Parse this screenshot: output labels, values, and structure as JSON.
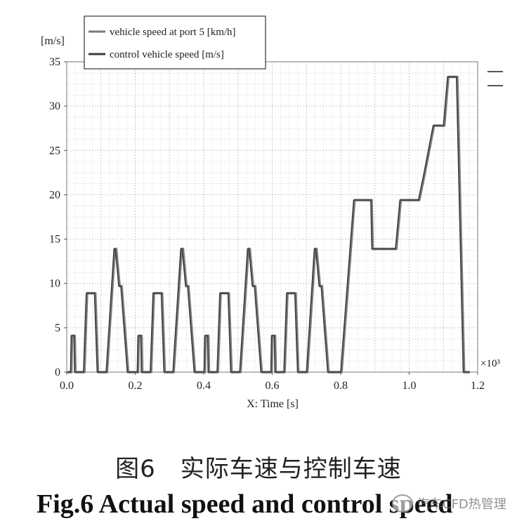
{
  "chart_data": {
    "type": "line",
    "xlabel": "X: Time  [s]",
    "ylabel": "[m/s]",
    "x_multiplier": "×10³",
    "xlim": [
      0,
      1.2
    ],
    "ylim": [
      0,
      35
    ],
    "xticks": [
      "0.0",
      "0.2",
      "0.4",
      "0.6",
      "0.8",
      "1.0",
      "1.2"
    ],
    "yticks": [
      "0",
      "5",
      "10",
      "15",
      "20",
      "25",
      "30",
      "35"
    ],
    "grid": true,
    "legend_position": "top-left",
    "series": [
      {
        "name": "vehicle speed at port 5  [km/h]",
        "color": "#7a7a7a",
        "x": [
          0,
          0.011,
          0.013,
          0.021,
          0.023,
          0.04,
          0.049,
          0.057,
          0.081,
          0.089,
          0.1,
          0.115,
          0.138,
          0.142,
          0.152,
          0.158,
          0.177,
          0.185,
          0.2,
          0.206,
          0.208,
          0.216,
          0.218,
          0.235,
          0.244,
          0.252,
          0.276,
          0.284,
          0.295,
          0.31,
          0.333,
          0.337,
          0.347,
          0.353,
          0.372,
          0.38,
          0.395,
          0.401,
          0.403,
          0.411,
          0.413,
          0.43,
          0.439,
          0.447,
          0.471,
          0.479,
          0.49,
          0.505,
          0.528,
          0.532,
          0.542,
          0.548,
          0.567,
          0.575,
          0.59,
          0.596,
          0.598,
          0.606,
          0.608,
          0.625,
          0.634,
          0.642,
          0.666,
          0.674,
          0.685,
          0.7,
          0.723,
          0.727,
          0.737,
          0.743,
          0.762,
          0.77,
          0.785,
          0.8,
          0.838,
          0.888,
          0.891,
          0.96,
          0.973,
          1.027,
          1.042,
          1.07,
          1.1,
          1.112,
          1.138,
          1.158,
          1.175
        ],
        "y": [
          0,
          0,
          4.1,
          4.1,
          0,
          0,
          0,
          8.9,
          8.9,
          0,
          0,
          0,
          13.9,
          13.9,
          9.7,
          9.7,
          0,
          0,
          0,
          0,
          4.1,
          4.1,
          0,
          0,
          0,
          8.9,
          8.9,
          0,
          0,
          0,
          13.9,
          13.9,
          9.7,
          9.7,
          0,
          0,
          0,
          0,
          4.1,
          4.1,
          0,
          0,
          0,
          8.9,
          8.9,
          0,
          0,
          0,
          13.9,
          13.9,
          9.7,
          9.7,
          0,
          0,
          0,
          0,
          4.1,
          4.1,
          0,
          0,
          0,
          8.9,
          8.9,
          0,
          0,
          0,
          13.9,
          13.9,
          9.7,
          9.7,
          0,
          0,
          0,
          0,
          19.4,
          19.4,
          13.9,
          13.9,
          19.4,
          19.4,
          22.2,
          27.8,
          27.8,
          33.3,
          33.3,
          0,
          0
        ]
      },
      {
        "name": "control vehicle speed  [m/s]",
        "color": "#3c3c3c",
        "x": [
          0,
          0.011,
          0.013,
          0.021,
          0.023,
          0.04,
          0.049,
          0.057,
          0.081,
          0.089,
          0.1,
          0.115,
          0.138,
          0.142,
          0.152,
          0.158,
          0.177,
          0.185,
          0.2,
          0.206,
          0.208,
          0.216,
          0.218,
          0.235,
          0.244,
          0.252,
          0.276,
          0.284,
          0.295,
          0.31,
          0.333,
          0.337,
          0.347,
          0.353,
          0.372,
          0.38,
          0.395,
          0.401,
          0.403,
          0.411,
          0.413,
          0.43,
          0.439,
          0.447,
          0.471,
          0.479,
          0.49,
          0.505,
          0.528,
          0.532,
          0.542,
          0.548,
          0.567,
          0.575,
          0.59,
          0.596,
          0.598,
          0.606,
          0.608,
          0.625,
          0.634,
          0.642,
          0.666,
          0.674,
          0.685,
          0.7,
          0.723,
          0.727,
          0.737,
          0.743,
          0.762,
          0.77,
          0.785,
          0.8,
          0.838,
          0.888,
          0.891,
          0.96,
          0.973,
          1.027,
          1.042,
          1.07,
          1.1,
          1.112,
          1.138,
          1.158,
          1.175
        ],
        "y": [
          0,
          0,
          4.1,
          4.1,
          0,
          0,
          0,
          8.9,
          8.9,
          0,
          0,
          0,
          13.9,
          13.9,
          9.7,
          9.7,
          0,
          0,
          0,
          0,
          4.1,
          4.1,
          0,
          0,
          0,
          8.9,
          8.9,
          0,
          0,
          0,
          13.9,
          13.9,
          9.7,
          9.7,
          0,
          0,
          0,
          0,
          4.1,
          4.1,
          0,
          0,
          0,
          8.9,
          8.9,
          0,
          0,
          0,
          13.9,
          13.9,
          9.7,
          9.7,
          0,
          0,
          0,
          0,
          4.1,
          4.1,
          0,
          0,
          0,
          8.9,
          8.9,
          0,
          0,
          0,
          13.9,
          13.9,
          9.7,
          9.7,
          0,
          0,
          0,
          0,
          19.4,
          19.4,
          13.9,
          13.9,
          19.4,
          19.4,
          22.2,
          27.8,
          27.8,
          33.3,
          33.3,
          0,
          0
        ]
      }
    ]
  },
  "caption": {
    "cn": "图6　实际车速与控制车速",
    "en": "Fig.6    Actual speed and control speed"
  },
  "watermark": {
    "text": "汽车CFD热管理"
  }
}
